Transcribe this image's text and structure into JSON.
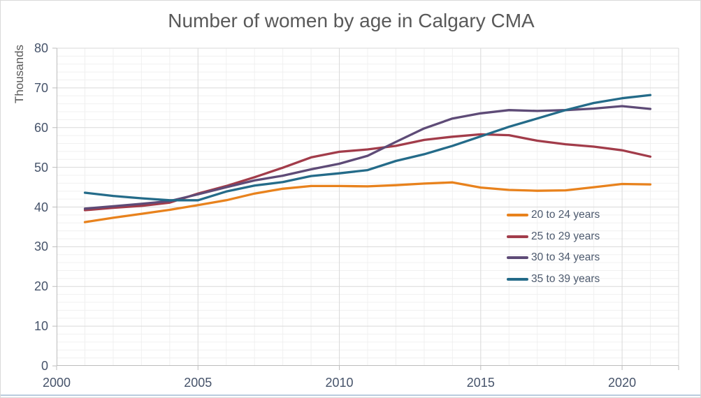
{
  "chart_title": "Number of women by age in Calgary CMA",
  "chart_data": {
    "type": "line",
    "title": "Number of women by age in Calgary CMA",
    "xlabel": "",
    "ylabel": "Thousands",
    "x": [
      2001,
      2002,
      2003,
      2004,
      2005,
      2006,
      2007,
      2008,
      2009,
      2010,
      2011,
      2012,
      2013,
      2014,
      2015,
      2016,
      2017,
      2018,
      2019,
      2020,
      2021
    ],
    "series": [
      {
        "name": "20 to 24 years",
        "color": "#E8821D",
        "values": [
          36.2,
          37.3,
          38.3,
          39.3,
          40.5,
          41.7,
          43.4,
          44.6,
          45.3,
          45.3,
          45.2,
          45.5,
          45.9,
          46.2,
          44.9,
          44.3,
          44.1,
          44.2,
          45.0,
          45.8,
          45.7
        ]
      },
      {
        "name": "25 to 29 years",
        "color": "#A23C4A",
        "values": [
          39.2,
          39.8,
          40.3,
          41.1,
          43.4,
          45.3,
          47.5,
          49.9,
          52.5,
          53.9,
          54.5,
          55.4,
          56.9,
          57.7,
          58.3,
          58.1,
          56.7,
          55.8,
          55.2,
          54.3,
          52.7
        ]
      },
      {
        "name": "30 to 34 years",
        "color": "#5E4B77",
        "values": [
          39.6,
          40.2,
          40.8,
          41.5,
          43.2,
          45.0,
          46.7,
          47.9,
          49.5,
          50.9,
          52.9,
          56.4,
          59.8,
          62.3,
          63.6,
          64.4,
          64.2,
          64.4,
          64.8,
          65.4,
          64.7
        ]
      },
      {
        "name": "35 to 39 years",
        "color": "#246B89",
        "values": [
          43.6,
          42.8,
          42.2,
          41.7,
          41.7,
          43.9,
          45.4,
          46.3,
          47.8,
          48.5,
          49.3,
          51.6,
          53.3,
          55.4,
          57.8,
          60.2,
          62.3,
          64.4,
          66.2,
          67.4,
          68.2
        ]
      }
    ],
    "xlim": [
      2000,
      2022
    ],
    "ylim": [
      0,
      80
    ],
    "x_ticks": [
      2000,
      2005,
      2010,
      2015,
      2020
    ],
    "y_ticks": [
      0,
      10,
      20,
      30,
      40,
      50,
      60,
      70,
      80
    ],
    "x_minor_step": 1,
    "y_minor_step": 2,
    "grid": "major and minor, on",
    "legend_position": "middle-right"
  },
  "style_colors": {
    "major_gridline": "#d9d9d9",
    "minor_gridline": "#f0f0f0",
    "axis_line": "#bdbdbd",
    "tick_label": "#46536a",
    "title_text": "#595959",
    "legend_text": "#4d5a6e",
    "bottom_divider": "#b9cbde"
  }
}
